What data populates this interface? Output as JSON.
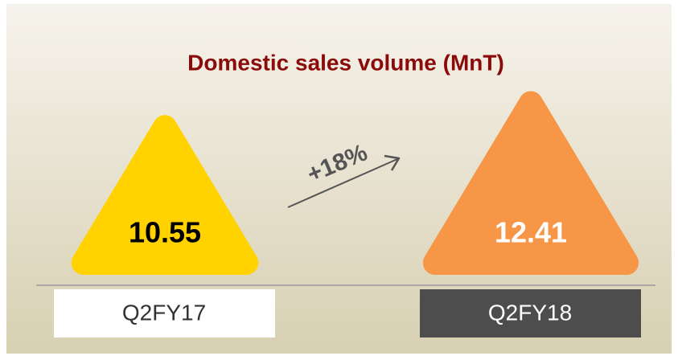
{
  "chart_data": {
    "type": "triangle",
    "title": "Domestic sales volume (MnT)",
    "categories": [
      "Q2FY17",
      "Q2FY18"
    ],
    "values": [
      10.55,
      12.41
    ],
    "colors": [
      "#ffd200",
      "#f79646"
    ],
    "annotation": "+18%"
  }
}
